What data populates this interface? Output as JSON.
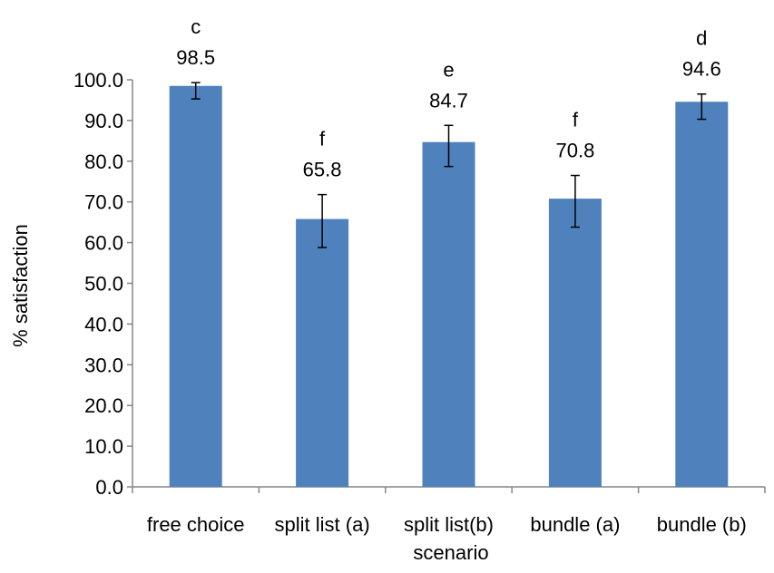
{
  "chart_data": {
    "type": "bar",
    "title": "",
    "xlabel": "scenario",
    "ylabel": "% satisfaction",
    "ylim": [
      0,
      100
    ],
    "ytick_step": 10,
    "ytick_labels": [
      "0.0",
      "10.0",
      "20.0",
      "30.0",
      "40.0",
      "50.0",
      "60.0",
      "70.0",
      "80.0",
      "90.0",
      "100.0"
    ],
    "categories": [
      "free choice",
      "split list (a)",
      "split list(b)",
      "bundle (a)",
      "bundle (b)"
    ],
    "values": [
      98.5,
      65.8,
      84.7,
      70.8,
      94.6
    ],
    "data_labels": [
      "98.5",
      "65.8",
      "84.7",
      "70.8",
      "94.6"
    ],
    "error_low": [
      95.3,
      58.8,
      78.7,
      63.8,
      90.3
    ],
    "error_high": [
      99.3,
      71.8,
      88.8,
      76.5,
      96.5
    ],
    "significance_letters": [
      "c",
      "f",
      "e",
      "f",
      "d"
    ],
    "bar_color": "#4f81bd",
    "grid": false,
    "legend": "none"
  }
}
